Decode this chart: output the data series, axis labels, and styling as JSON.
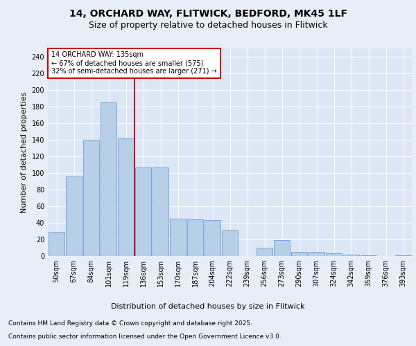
{
  "title_line1": "14, ORCHARD WAY, FLITWICK, BEDFORD, MK45 1LF",
  "title_line2": "Size of property relative to detached houses in Flitwick",
  "xlabel": "Distribution of detached houses by size in Flitwick",
  "ylabel": "Number of detached properties",
  "categories": [
    "50sqm",
    "67sqm",
    "84sqm",
    "101sqm",
    "119sqm",
    "136sqm",
    "153sqm",
    "170sqm",
    "187sqm",
    "204sqm",
    "222sqm",
    "239sqm",
    "256sqm",
    "273sqm",
    "290sqm",
    "307sqm",
    "324sqm",
    "342sqm",
    "359sqm",
    "376sqm",
    "393sqm"
  ],
  "values": [
    29,
    96,
    140,
    185,
    142,
    107,
    107,
    45,
    44,
    43,
    31,
    0,
    10,
    19,
    5,
    5,
    3,
    2,
    1,
    0,
    1
  ],
  "bar_color": "#b8cfe8",
  "bar_edge_color": "#6a9fd8",
  "highlight_color": "#cc0000",
  "highlight_index": 4,
  "annotation_line1": "14 ORCHARD WAY: 135sqm",
  "annotation_line2": "← 67% of detached houses are smaller (575)",
  "annotation_line3": "32% of semi-detached houses are larger (271) →",
  "annotation_box_color": "#ffffff",
  "annotation_box_edge": "#cc0000",
  "ylim": [
    0,
    250
  ],
  "yticks": [
    0,
    20,
    40,
    60,
    80,
    100,
    120,
    140,
    160,
    180,
    200,
    220,
    240
  ],
  "footer_line1": "Contains HM Land Registry data © Crown copyright and database right 2025.",
  "footer_line2": "Contains public sector information licensed under the Open Government Licence v3.0.",
  "bg_color": "#e8eef7",
  "plot_bg_color": "#dce6f5",
  "title_fontsize": 10,
  "subtitle_fontsize": 9,
  "ylabel_fontsize": 8,
  "xlabel_fontsize": 8,
  "tick_fontsize": 7,
  "footer_fontsize": 6.5,
  "ann_fontsize": 7
}
